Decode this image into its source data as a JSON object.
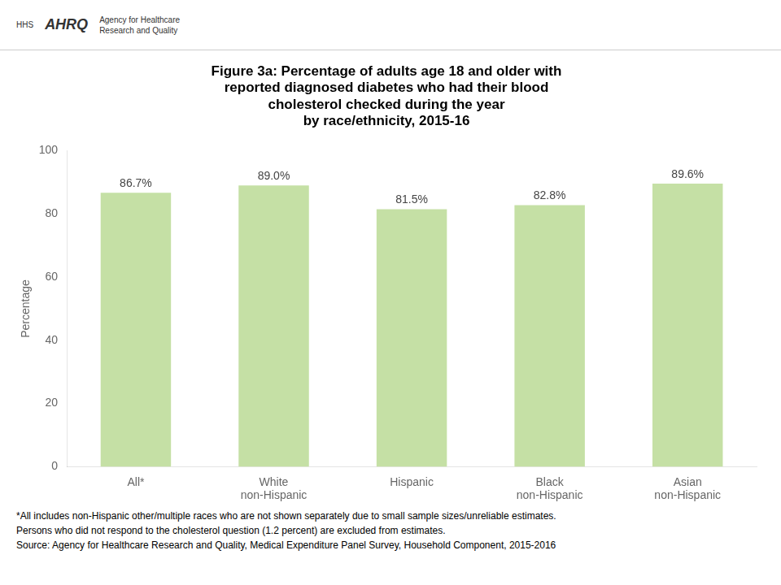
{
  "chart_data": {
    "type": "bar",
    "title": "Figure 3a: Percentage of adults age 18 and older with\nreported diagnosed diabetes who had their blood\ncholesterol checked during the year\nby race/ethnicity, 2015-16",
    "categories": [
      "All*",
      "White\nnon-Hispanic",
      "Hispanic",
      "Black\nnon-Hispanic",
      "Asian\nnon-Hispanic"
    ],
    "values": [
      86.7,
      89.0,
      81.5,
      82.8,
      89.6
    ],
    "value_labels": [
      "86.7%",
      "89.0%",
      "81.5%",
      "82.8%",
      "89.6%"
    ],
    "data_labels": true,
    "color": "#c5e0a5",
    "ylabel": "Percentage",
    "ylim": [
      0,
      100
    ],
    "yticks": [
      0,
      20,
      40,
      60,
      80,
      100
    ],
    "grid": false,
    "annotations": {
      "header": [
        "HHS",
        "AHRQ",
        "Agency for Healthcare\nResearch and Quality"
      ],
      "footnotes": [
        "*All includes non-Hispanic other/multiple races who are not shown separately due to small sample sizes/unreliable estimates.",
        "Persons who did not respond to the cholesterol question (1.2 percent) are excluded from estimates.",
        "Source: Agency for Healthcare Research and Quality, Medical Expenditure Panel Survey, Household Component, 2015-2016"
      ]
    }
  }
}
